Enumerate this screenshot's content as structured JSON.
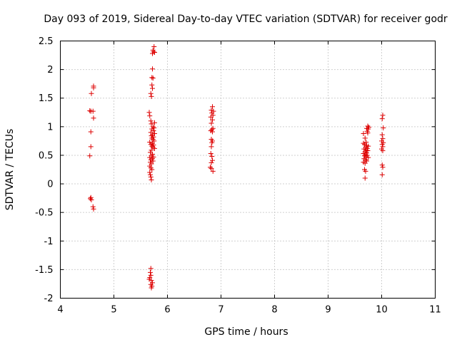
{
  "chart_data": {
    "type": "scatter",
    "title": "Day 093 of 2019, Sidereal Day-to-day VTEC variation (SDTVAR) for receiver godr",
    "xlabel": "GPS time / hours",
    "ylabel": "SDTVAR / TECUs",
    "xlim": [
      4,
      11
    ],
    "ylim": [
      -2,
      2.5
    ],
    "xticks": [
      "4",
      "5",
      "6",
      "7",
      "8",
      "9",
      "10",
      "11"
    ],
    "yticks": [
      "-2",
      "-1.5",
      "-1",
      "-0.5",
      "0",
      "0.5",
      "1",
      "1.5",
      "2",
      "2.5"
    ],
    "grid": true,
    "marker": "+",
    "color": "#dd0000",
    "series": [
      {
        "name": "SDTVAR",
        "points": [
          [
            4.55,
            1.28
          ],
          [
            4.57,
            1.27
          ],
          [
            4.61,
            1.27
          ],
          [
            4.62,
            1.71
          ],
          [
            4.62,
            1.68
          ],
          [
            4.58,
            1.58
          ],
          [
            4.62,
            1.15
          ],
          [
            4.57,
            0.91
          ],
          [
            4.57,
            0.65
          ],
          [
            4.55,
            0.49
          ],
          [
            4.57,
            -0.24
          ],
          [
            4.56,
            -0.26
          ],
          [
            4.58,
            -0.28
          ],
          [
            4.61,
            -0.4
          ],
          [
            4.62,
            -0.44
          ],
          [
            5.75,
            2.4
          ],
          [
            5.73,
            2.34
          ],
          [
            5.74,
            2.31
          ],
          [
            5.76,
            2.3
          ],
          [
            5.72,
            2.28
          ],
          [
            5.72,
            2.01
          ],
          [
            5.71,
            1.86
          ],
          [
            5.73,
            1.85
          ],
          [
            5.71,
            1.73
          ],
          [
            5.72,
            1.67
          ],
          [
            5.69,
            1.58
          ],
          [
            5.7,
            1.53
          ],
          [
            5.66,
            1.25
          ],
          [
            5.67,
            1.19
          ],
          [
            5.69,
            1.1
          ],
          [
            5.76,
            1.07
          ],
          [
            5.7,
            1.05
          ],
          [
            5.73,
            1.0
          ],
          [
            5.75,
            0.98
          ],
          [
            5.71,
            0.96
          ],
          [
            5.74,
            0.93
          ],
          [
            5.69,
            0.9
          ],
          [
            5.76,
            0.88
          ],
          [
            5.72,
            0.86
          ],
          [
            5.7,
            0.84
          ],
          [
            5.74,
            0.82
          ],
          [
            5.71,
            0.8
          ],
          [
            5.73,
            0.78
          ],
          [
            5.75,
            0.75
          ],
          [
            5.67,
            0.73
          ],
          [
            5.72,
            0.71
          ],
          [
            5.69,
            0.69
          ],
          [
            5.74,
            0.68
          ],
          [
            5.71,
            0.66
          ],
          [
            5.73,
            0.64
          ],
          [
            5.76,
            0.62
          ],
          [
            5.7,
            0.59
          ],
          [
            5.68,
            0.55
          ],
          [
            5.72,
            0.52
          ],
          [
            5.7,
            0.49
          ],
          [
            5.74,
            0.47
          ],
          [
            5.67,
            0.46
          ],
          [
            5.72,
            0.44
          ],
          [
            5.69,
            0.42
          ],
          [
            5.73,
            0.4
          ],
          [
            5.68,
            0.38
          ],
          [
            5.7,
            0.35
          ],
          [
            5.67,
            0.31
          ],
          [
            5.69,
            0.28
          ],
          [
            5.71,
            0.25
          ],
          [
            5.67,
            0.2
          ],
          [
            5.68,
            0.16
          ],
          [
            5.69,
            0.12
          ],
          [
            5.7,
            0.07
          ],
          [
            5.69,
            -1.48
          ],
          [
            5.68,
            -1.55
          ],
          [
            5.69,
            -1.6
          ],
          [
            5.67,
            -1.64
          ],
          [
            5.66,
            -1.67
          ],
          [
            5.7,
            -1.69
          ],
          [
            5.72,
            -1.73
          ],
          [
            5.69,
            -1.76
          ],
          [
            5.71,
            -1.79
          ],
          [
            5.7,
            -1.82
          ],
          [
            6.84,
            1.35
          ],
          [
            6.82,
            1.29
          ],
          [
            6.86,
            1.27
          ],
          [
            6.83,
            1.24
          ],
          [
            6.85,
            1.2
          ],
          [
            6.81,
            1.17
          ],
          [
            6.84,
            1.12
          ],
          [
            6.82,
            1.06
          ],
          [
            6.85,
            0.97
          ],
          [
            6.83,
            0.95
          ],
          [
            6.81,
            0.93
          ],
          [
            6.84,
            0.91
          ],
          [
            6.82,
            0.78
          ],
          [
            6.84,
            0.75
          ],
          [
            6.83,
            0.72
          ],
          [
            6.82,
            0.65
          ],
          [
            6.81,
            0.53
          ],
          [
            6.83,
            0.48
          ],
          [
            6.84,
            0.41
          ],
          [
            6.82,
            0.37
          ],
          [
            6.8,
            0.29
          ],
          [
            6.82,
            0.27
          ],
          [
            6.85,
            0.22
          ],
          [
            9.74,
            1.01
          ],
          [
            9.76,
            0.99
          ],
          [
            9.72,
            0.97
          ],
          [
            9.75,
            0.96
          ],
          [
            9.73,
            0.92
          ],
          [
            9.74,
            0.89
          ],
          [
            9.66,
            0.88
          ],
          [
            9.69,
            0.8
          ],
          [
            9.71,
            0.73
          ],
          [
            9.66,
            0.71
          ],
          [
            9.68,
            0.69
          ],
          [
            9.72,
            0.67
          ],
          [
            9.75,
            0.66
          ],
          [
            9.7,
            0.64
          ],
          [
            9.73,
            0.62
          ],
          [
            9.67,
            0.61
          ],
          [
            9.71,
            0.59
          ],
          [
            9.74,
            0.58
          ],
          [
            9.69,
            0.56
          ],
          [
            9.72,
            0.54
          ],
          [
            9.66,
            0.53
          ],
          [
            9.7,
            0.51
          ],
          [
            9.73,
            0.5
          ],
          [
            9.68,
            0.49
          ],
          [
            9.71,
            0.47
          ],
          [
            9.75,
            0.46
          ],
          [
            9.67,
            0.44
          ],
          [
            9.7,
            0.42
          ],
          [
            9.72,
            0.4
          ],
          [
            9.66,
            0.38
          ],
          [
            9.69,
            0.36
          ],
          [
            9.68,
            0.25
          ],
          [
            9.7,
            0.22
          ],
          [
            9.69,
            0.1
          ],
          [
            10.02,
            1.2
          ],
          [
            10.01,
            1.14
          ],
          [
            10.03,
            0.98
          ],
          [
            10.01,
            0.86
          ],
          [
            10.02,
            0.79
          ],
          [
            10.0,
            0.75
          ],
          [
            10.03,
            0.72
          ],
          [
            10.01,
            0.69
          ],
          [
            10.02,
            0.65
          ],
          [
            10.0,
            0.61
          ],
          [
            10.02,
            0.58
          ],
          [
            10.01,
            0.33
          ],
          [
            10.02,
            0.29
          ],
          [
            10.01,
            0.16
          ]
        ]
      }
    ]
  }
}
